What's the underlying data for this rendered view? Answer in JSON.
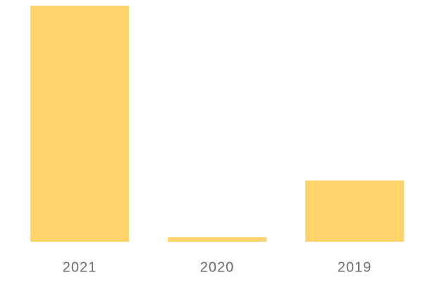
{
  "chart_data": {
    "type": "bar",
    "categories": [
      "2021",
      "2020",
      "2019"
    ],
    "values": [
      100,
      2,
      26
    ],
    "color": "#fed46b",
    "ylim": [
      0,
      100
    ]
  }
}
